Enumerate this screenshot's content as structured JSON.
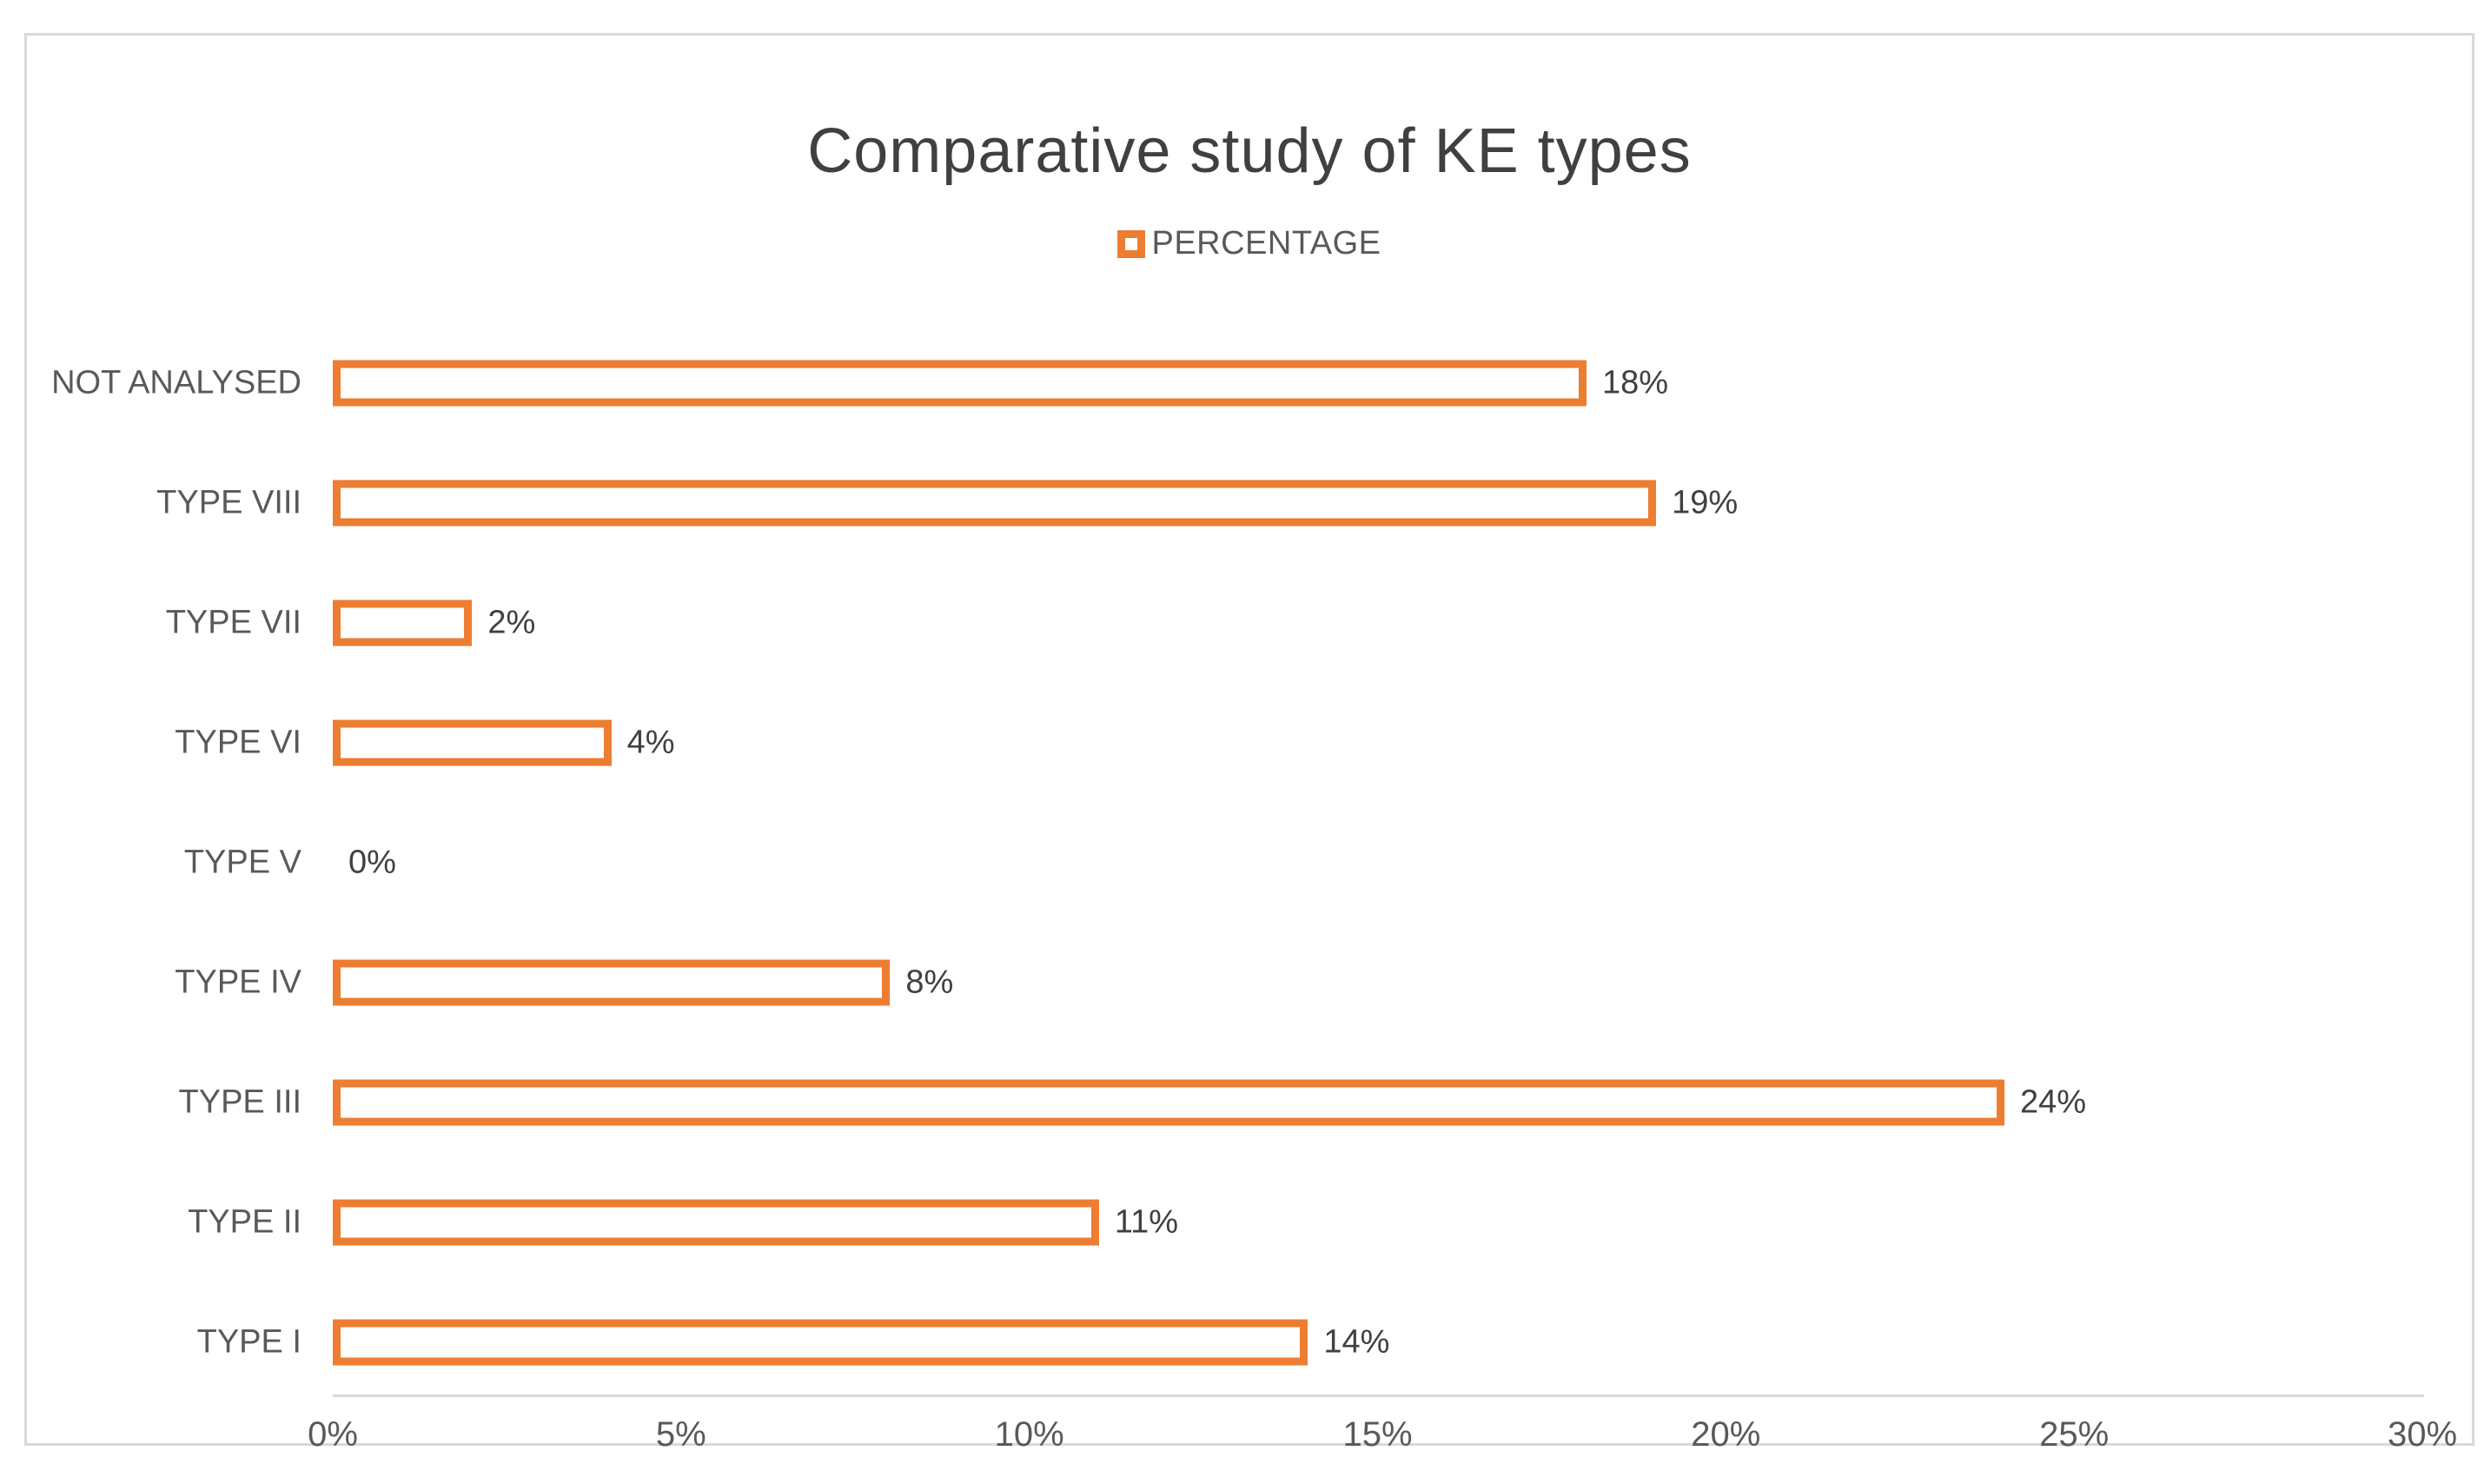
{
  "chart": {
    "title": "Comparative study of KE types",
    "legend": {
      "label": "PERCENTAGE",
      "marker": "hollow-square-icon"
    },
    "colors": {
      "bar_outline": "#ed7d31",
      "bar_fill": "#ffffff",
      "frame_and_axis": "#d9d9d9",
      "title_text": "#404040",
      "value_text": "#404040",
      "label_text": "#595959"
    }
  },
  "chart_data": {
    "type": "bar",
    "orientation": "horizontal",
    "bar_style": "hollow-outline",
    "title": "Comparative study of KE types",
    "legend_entries": [
      "PERCENTAGE"
    ],
    "legend_position": "top-center",
    "grid": false,
    "categories_top_to_bottom": [
      "NOT ANALYSED",
      "TYPE VIII",
      "TYPE VII",
      "TYPE VI",
      "TYPE V",
      "TYPE IV",
      "TYPE III",
      "TYPE II",
      "TYPE I"
    ],
    "series": [
      {
        "name": "PERCENTAGE",
        "values_percent": [
          18,
          19,
          2,
          4,
          0,
          8,
          24,
          11,
          14
        ],
        "data_labels": [
          "18%",
          "19%",
          "2%",
          "4%",
          "0%",
          "8%",
          "24%",
          "11%",
          "14%"
        ]
      }
    ],
    "x_axis": {
      "min": 0,
      "max": 30,
      "step": 5,
      "tick_labels": [
        "0%",
        "5%",
        "10%",
        "15%",
        "20%",
        "25%",
        "30%"
      ],
      "label": ""
    },
    "y_axis": {
      "label": ""
    }
  }
}
